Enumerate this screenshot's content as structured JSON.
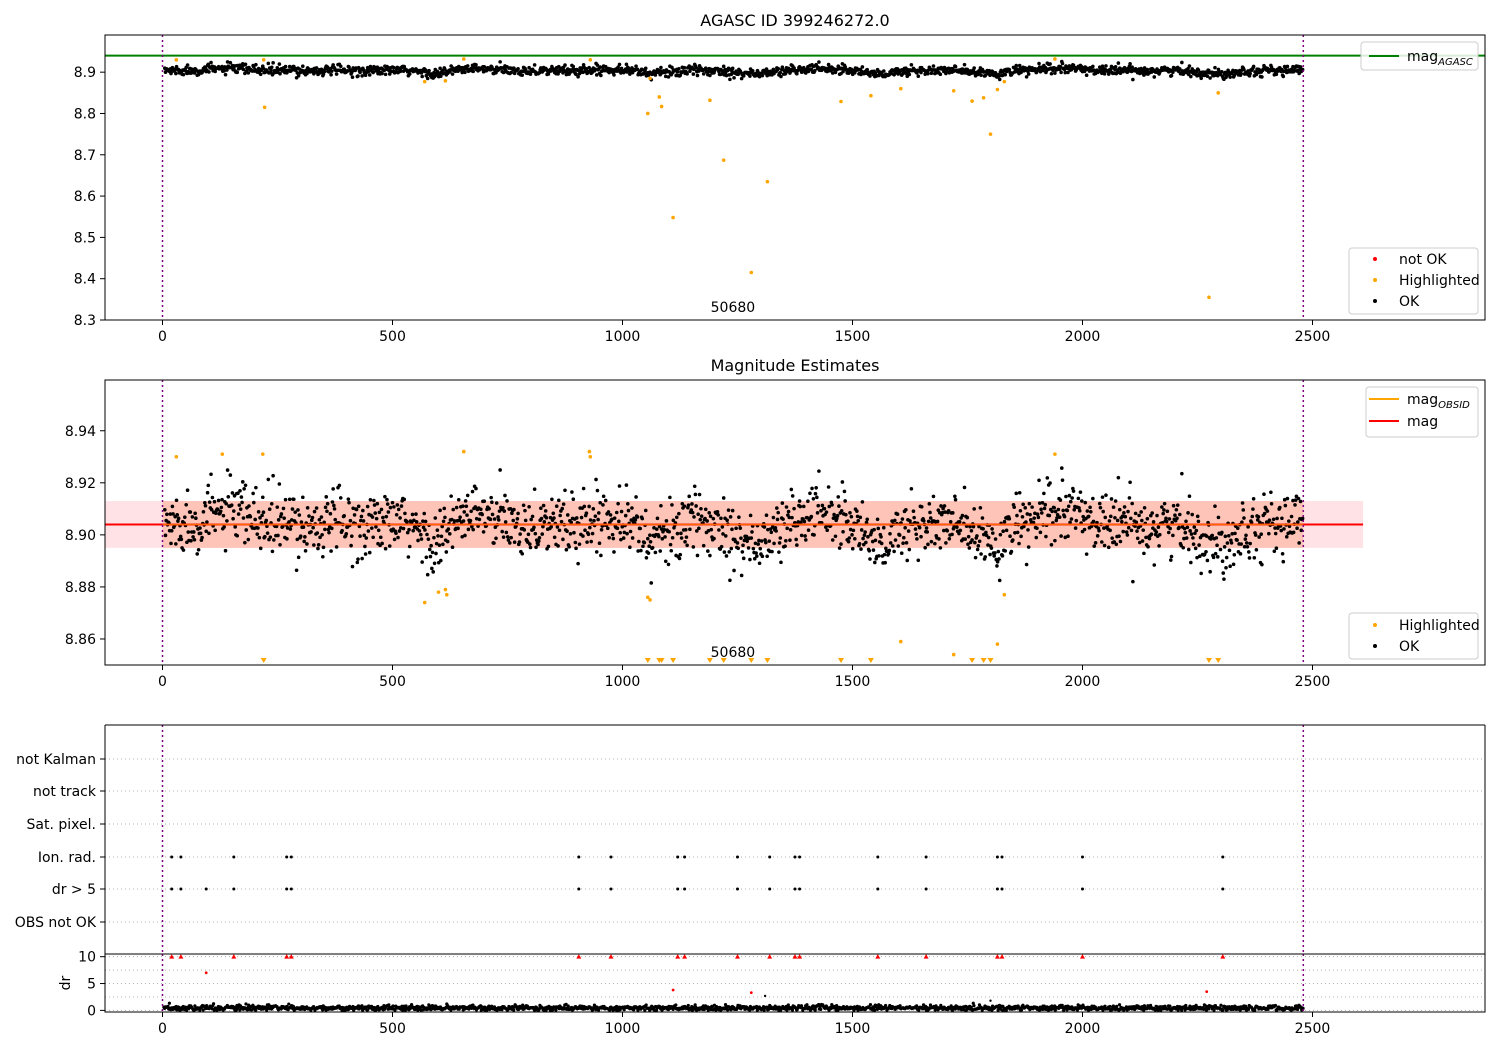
{
  "colors": {
    "ok": "#000000",
    "highlighted": "#ffa500",
    "not_ok": "#ff0000",
    "mag_agasc": "#008000",
    "mag_obsid": "#ffa500",
    "mag": "#ff0000",
    "band_fill": "#ff7f50",
    "band_fill_outer": "#ffb6c1",
    "obs_boundary": "#800080",
    "grid": "#b0b0b0"
  },
  "chart_data": [
    {
      "type": "scatter",
      "title": "AGASC ID 399246272.0",
      "xlim": [
        -125,
        2875
      ],
      "ylim": [
        8.3,
        8.99
      ],
      "x_ticks": [
        0,
        500,
        1000,
        1500,
        2000,
        2500
      ],
      "y_ticks": [
        8.3,
        8.4,
        8.5,
        8.6,
        8.7,
        8.8,
        8.9
      ],
      "grid": false,
      "legends": [
        {
          "placement": "top-right",
          "entries": [
            {
              "label": "mag",
              "subscript": "AGASC",
              "marker": "line",
              "color_key": "mag_agasc"
            }
          ]
        },
        {
          "placement": "bottom-right",
          "entries": [
            {
              "label": "not OK",
              "marker": "dot",
              "color_key": "not_ok"
            },
            {
              "label": "Highlighted",
              "marker": "dot",
              "color_key": "highlighted"
            },
            {
              "label": "OK",
              "marker": "dot",
              "color_key": "ok"
            }
          ]
        }
      ],
      "obsid_label": "50680",
      "obs_boundaries": [
        0,
        2480
      ],
      "mag_agasc": 8.94,
      "ok_baseline": {
        "x_range": [
          0,
          2480
        ],
        "mean": 8.904,
        "scatter": 0.006,
        "dip_centers": [
          600,
          1060,
          1290,
          1560,
          1800,
          2290
        ],
        "rise_centers": [
          140,
          660,
          1000,
          1440,
          1960
        ],
        "modulation": 0.008
      },
      "highlighted": [
        [
          30,
          8.93
        ],
        [
          220,
          8.93
        ],
        [
          222,
          8.815
        ],
        [
          570,
          8.877
        ],
        [
          615,
          8.879
        ],
        [
          655,
          8.932
        ],
        [
          930,
          8.93
        ],
        [
          1055,
          8.8
        ],
        [
          1060,
          8.885
        ],
        [
          1080,
          8.84
        ],
        [
          1085,
          8.817
        ],
        [
          1110,
          8.548
        ],
        [
          1190,
          8.832
        ],
        [
          1220,
          8.687
        ],
        [
          1280,
          8.415
        ],
        [
          1315,
          8.635
        ],
        [
          1475,
          8.829
        ],
        [
          1540,
          8.843
        ],
        [
          1605,
          8.86
        ],
        [
          1720,
          8.855
        ],
        [
          1760,
          8.83
        ],
        [
          1785,
          8.838
        ],
        [
          1800,
          8.75
        ],
        [
          1815,
          8.858
        ],
        [
          1830,
          8.877
        ],
        [
          1940,
          8.932
        ],
        [
          2275,
          8.355
        ],
        [
          2295,
          8.85
        ]
      ]
    },
    {
      "type": "scatter",
      "title": "Magnitude Estimates",
      "xlim": [
        -125,
        2875
      ],
      "ylim": [
        8.85,
        8.9595
      ],
      "x_ticks": [
        0,
        500,
        1000,
        1500,
        2000,
        2500
      ],
      "y_ticks": [
        8.86,
        8.88,
        8.9,
        8.92,
        8.94
      ],
      "grid": false,
      "legends": [
        {
          "placement": "top-right",
          "entries": [
            {
              "label": "mag",
              "subscript": "OBSID",
              "marker": "line",
              "color_key": "mag_obsid"
            },
            {
              "label": "mag",
              "subscript": "",
              "marker": "line",
              "color_key": "mag"
            }
          ]
        },
        {
          "placement": "bottom-right",
          "entries": [
            {
              "label": "Highlighted",
              "marker": "dot",
              "color_key": "highlighted"
            },
            {
              "label": "OK",
              "marker": "dot",
              "color_key": "ok"
            }
          ]
        }
      ],
      "obsid_label": "50680",
      "obs_boundaries": [
        0,
        2480
      ],
      "mag": 8.904,
      "mag_obsid": 8.904,
      "band": [
        8.895,
        8.913
      ],
      "band_x_range": [
        -125,
        2610
      ],
      "band_inner_x_range": [
        0,
        2480
      ],
      "ok_baseline": {
        "x_range": [
          0,
          2480
        ],
        "mean": 8.904,
        "scatter": 0.006,
        "dip_centers": [
          600,
          1060,
          1290,
          1560,
          1800,
          2290
        ],
        "rise_centers": [
          140,
          660,
          1000,
          1440,
          1960
        ],
        "modulation": 0.008
      },
      "highlighted": [
        [
          30,
          8.93
        ],
        [
          130,
          8.931
        ],
        [
          218,
          8.931
        ],
        [
          570,
          8.874
        ],
        [
          600,
          8.878
        ],
        [
          615,
          8.879
        ],
        [
          618,
          8.877
        ],
        [
          655,
          8.932
        ],
        [
          928,
          8.932
        ],
        [
          930,
          8.93
        ],
        [
          1055,
          8.876
        ],
        [
          1060,
          8.875
        ],
        [
          1605,
          8.859
        ],
        [
          1720,
          8.854
        ],
        [
          1815,
          8.858
        ],
        [
          1830,
          8.877
        ],
        [
          1940,
          8.931
        ]
      ],
      "offscale_low_x": [
        220,
        1055,
        1080,
        1085,
        1110,
        1190,
        1220,
        1280,
        1315,
        1475,
        1540,
        1760,
        1785,
        1800,
        2275,
        2295
      ]
    },
    {
      "type": "scatter",
      "title": "",
      "xlim": [
        -125,
        2875
      ],
      "x_ticks": [
        0,
        500,
        1000,
        1500,
        2000,
        2500
      ],
      "categories": [
        "not Kalman",
        "not track",
        "Sat. pixel.",
        "Ion. rad.",
        "dr > 5",
        "OBS not OK"
      ],
      "grid": true,
      "obs_boundaries": [
        0,
        2480
      ],
      "flags": {
        "Ion. rad.": [
          20,
          40,
          155,
          270,
          280,
          905,
          975,
          1120,
          1135,
          1250,
          1320,
          1375,
          1385,
          1555,
          1660,
          1815,
          1825,
          2000,
          2305
        ],
        "dr > 5": [
          20,
          40,
          95,
          155,
          270,
          280,
          905,
          975,
          1120,
          1135,
          1250,
          1320,
          1375,
          1385,
          1555,
          1660,
          1815,
          1825,
          2000,
          2305
        ]
      }
    },
    {
      "type": "scatter",
      "title": "",
      "xlim": [
        -125,
        2875
      ],
      "ylim": [
        -0.3,
        10.5
      ],
      "x_ticks": [
        0,
        500,
        1000,
        1500,
        2000,
        2500
      ],
      "y_ticks": [
        0,
        5,
        10
      ],
      "ylabel": "dr",
      "grid": true,
      "obs_boundaries": [
        0,
        2480
      ],
      "dr_clip": 10,
      "dr_baseline": {
        "x_range": [
          0,
          2480
        ],
        "mean": 0.45,
        "scatter": 0.25
      },
      "dr_ok_high": [
        [
          1800,
          1.8
        ],
        [
          1310,
          2.7
        ]
      ],
      "dr_not_ok": [
        [
          20,
          10
        ],
        [
          40,
          10
        ],
        [
          155,
          10
        ],
        [
          270,
          10
        ],
        [
          280,
          10
        ],
        [
          905,
          10
        ],
        [
          975,
          10
        ],
        [
          1120,
          10
        ],
        [
          1135,
          10
        ],
        [
          1250,
          10
        ],
        [
          1320,
          10
        ],
        [
          1375,
          10
        ],
        [
          1385,
          10
        ],
        [
          1555,
          10
        ],
        [
          1660,
          10
        ],
        [
          1815,
          10
        ],
        [
          1825,
          10
        ],
        [
          2000,
          10
        ],
        [
          2305,
          10
        ],
        [
          95,
          7.0
        ],
        [
          1110,
          3.8
        ],
        [
          1280,
          3.3
        ],
        [
          2270,
          3.5
        ]
      ]
    }
  ]
}
